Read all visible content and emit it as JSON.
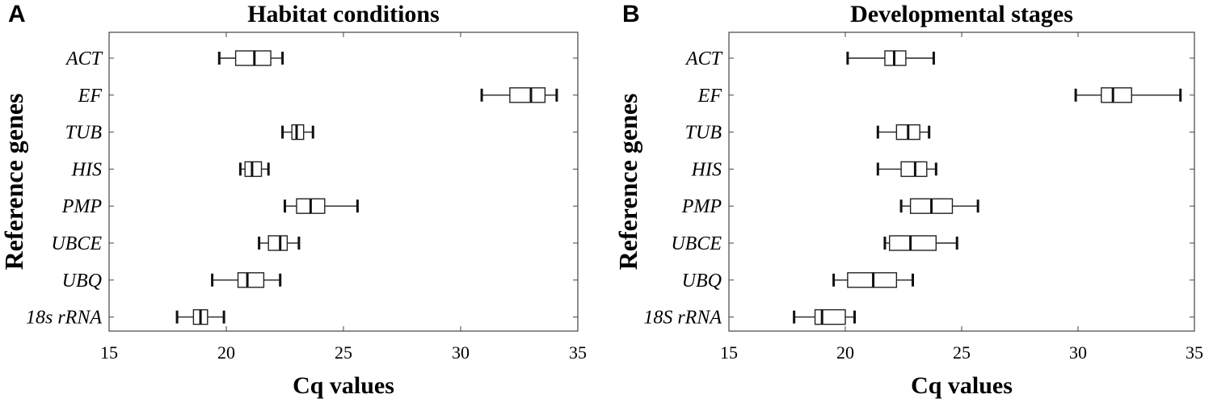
{
  "chart_data": [
    {
      "type": "boxplot",
      "panel_label": "A",
      "title": "Habitat conditions",
      "xlabel": "Cq values",
      "ylabel": "Reference genes",
      "xlim": [
        15,
        35
      ],
      "xticks": [
        15,
        20,
        25,
        30,
        35
      ],
      "categories": [
        "ACT",
        "EF",
        "TUB",
        "HIS",
        "PMP",
        "UBCE",
        "UBQ",
        "18s rRNA"
      ],
      "boxes": [
        {
          "min": 19.7,
          "q1": 20.4,
          "median": 21.2,
          "q3": 21.9,
          "max": 22.4
        },
        {
          "min": 30.9,
          "q1": 32.1,
          "median": 33.0,
          "q3": 33.6,
          "max": 34.1
        },
        {
          "min": 22.4,
          "q1": 22.8,
          "median": 23.0,
          "q3": 23.3,
          "max": 23.7
        },
        {
          "min": 20.6,
          "q1": 20.8,
          "median": 21.1,
          "q3": 21.5,
          "max": 21.8
        },
        {
          "min": 22.5,
          "q1": 23.0,
          "median": 23.6,
          "q3": 24.2,
          "max": 25.6
        },
        {
          "min": 21.4,
          "q1": 21.8,
          "median": 22.3,
          "q3": 22.6,
          "max": 23.1
        },
        {
          "min": 19.4,
          "q1": 20.5,
          "median": 20.9,
          "q3": 21.6,
          "max": 22.3
        },
        {
          "min": 17.9,
          "q1": 18.6,
          "median": 18.9,
          "q3": 19.2,
          "max": 19.9
        }
      ]
    },
    {
      "type": "boxplot",
      "panel_label": "B",
      "title": "Developmental stages",
      "xlabel": "Cq values",
      "ylabel": "Reference genes",
      "xlim": [
        15,
        35
      ],
      "xticks": [
        15,
        20,
        25,
        30,
        35
      ],
      "categories": [
        "ACT",
        "EF",
        "TUB",
        "HIS",
        "PMP",
        "UBCE",
        "UBQ",
        "18S rRNA"
      ],
      "boxes": [
        {
          "min": 20.1,
          "q1": 21.7,
          "median": 22.1,
          "q3": 22.6,
          "max": 23.8
        },
        {
          "min": 29.9,
          "q1": 31.0,
          "median": 31.5,
          "q3": 32.3,
          "max": 34.4
        },
        {
          "min": 21.4,
          "q1": 22.2,
          "median": 22.7,
          "q3": 23.2,
          "max": 23.6
        },
        {
          "min": 21.4,
          "q1": 22.4,
          "median": 23.0,
          "q3": 23.5,
          "max": 23.9
        },
        {
          "min": 22.4,
          "q1": 22.8,
          "median": 23.7,
          "q3": 24.6,
          "max": 25.7
        },
        {
          "min": 21.7,
          "q1": 21.9,
          "median": 22.8,
          "q3": 23.9,
          "max": 24.8
        },
        {
          "min": 19.5,
          "q1": 20.1,
          "median": 21.2,
          "q3": 22.2,
          "max": 22.9
        },
        {
          "min": 17.8,
          "q1": 18.7,
          "median": 19.0,
          "q3": 20.0,
          "max": 20.4
        }
      ]
    }
  ]
}
